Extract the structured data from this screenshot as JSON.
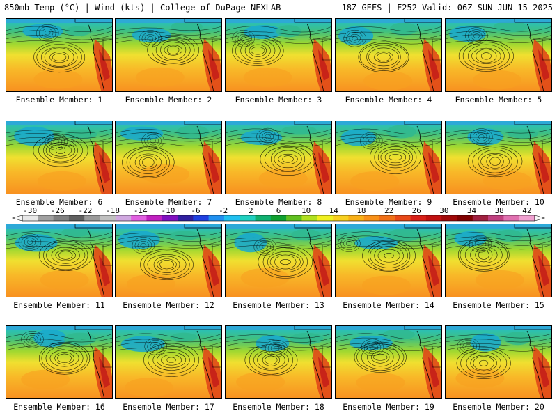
{
  "header": {
    "left": "850mb Temp (°C) | Wind (kts) | College of DuPage NEXLAB",
    "right": "18Z GEFS | F252 Valid: 06Z SUN JUN 15 2025"
  },
  "members": [
    "Ensemble Member: 1",
    "Ensemble Member: 2",
    "Ensemble Member: 3",
    "Ensemble Member: 4",
    "Ensemble Member: 5",
    "Ensemble Member: 6",
    "Ensemble Member: 7",
    "Ensemble Member: 8",
    "Ensemble Member: 9",
    "Ensemble Member: 10",
    "Ensemble Member: 11",
    "Ensemble Member: 12",
    "Ensemble Member: 13",
    "Ensemble Member: 14",
    "Ensemble Member: 15",
    "Ensemble Member: 16",
    "Ensemble Member: 17",
    "Ensemble Member: 18",
    "Ensemble Member: 19",
    "Ensemble Member: 20"
  ],
  "colorbar": {
    "labels": [
      "-30",
      "-26",
      "-22",
      "-18",
      "-14",
      "-10",
      "-6",
      "-2",
      "2",
      "6",
      "10",
      "14",
      "18",
      "22",
      "26",
      "30",
      "34",
      "38",
      "42"
    ],
    "colors": [
      "#e8e8e8",
      "#a0a0a0",
      "#808080",
      "#606060",
      "#9a9a9a",
      "#c0c0c0",
      "#d0a8e0",
      "#e060e0",
      "#c020c0",
      "#8010c0",
      "#3020a0",
      "#2040e0",
      "#2090f0",
      "#20c0f0",
      "#20d0c0",
      "#10b070",
      "#10a030",
      "#60c020",
      "#b0e020",
      "#f0f020",
      "#f8d020",
      "#f8b018",
      "#f89018",
      "#f07018",
      "#e84818",
      "#d82018",
      "#c01010",
      "#a00808",
      "#800000",
      "#a02040",
      "#c04080",
      "#e070b0",
      "#f0a0d0"
    ]
  }
}
